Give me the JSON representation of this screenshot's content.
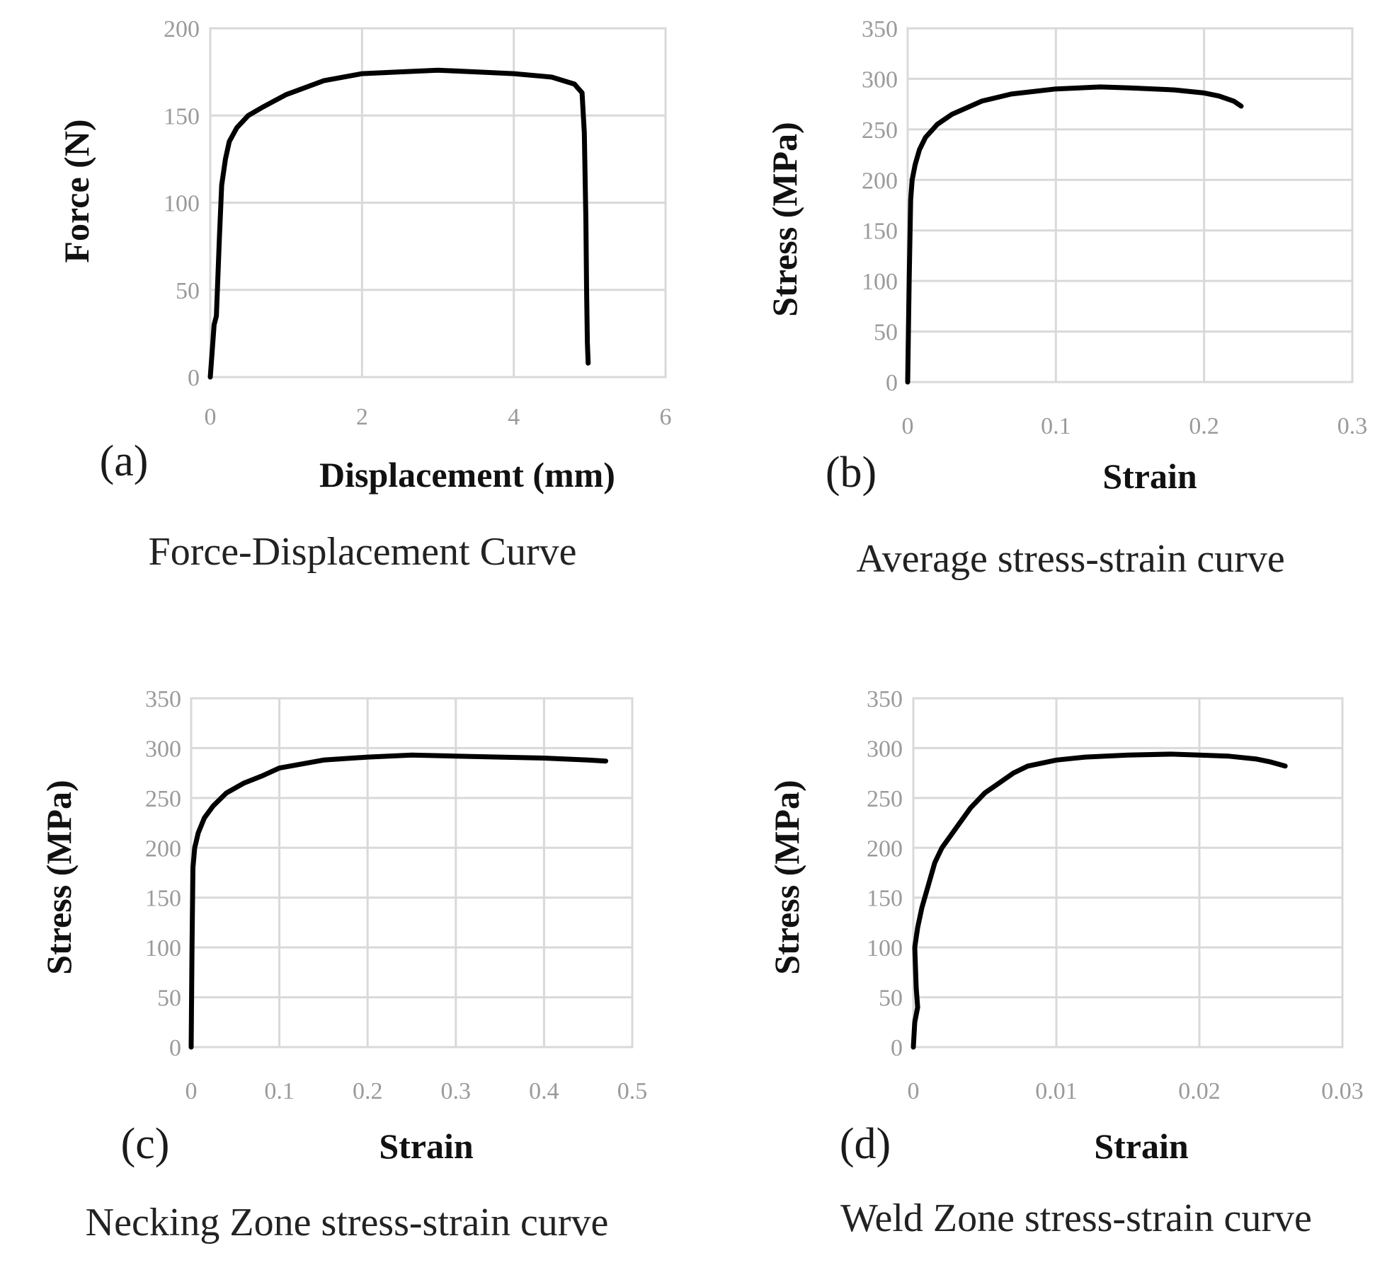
{
  "chart_data": [
    {
      "type": "line",
      "panel": "(a)",
      "caption": "Force-Displacement Curve",
      "xlabel": "Displacement (mm)",
      "ylabel": "Force (N)",
      "xlim": [
        0,
        6
      ],
      "ylim": [
        0,
        200
      ],
      "xticks": [
        0,
        2,
        4,
        6
      ],
      "xtick_labels": [
        "0",
        "2",
        "4",
        "6"
      ],
      "yticks": [
        0,
        50,
        100,
        150,
        200
      ],
      "ytick_labels": [
        "0",
        "50",
        "100",
        "150",
        "200"
      ],
      "grid": true,
      "series": [
        {
          "name": "Force-Displacement",
          "x": [
            0,
            0.05,
            0.08,
            0.12,
            0.15,
            0.2,
            0.25,
            0.35,
            0.5,
            0.7,
            1.0,
            1.5,
            2.0,
            2.5,
            3.0,
            3.5,
            4.0,
            4.5,
            4.8,
            4.9,
            4.93,
            4.95,
            4.96,
            4.97,
            4.98
          ],
          "y": [
            0,
            30,
            35,
            80,
            110,
            125,
            135,
            143,
            150,
            155,
            162,
            170,
            174,
            175,
            176,
            175,
            174,
            172,
            168,
            163,
            140,
            90,
            50,
            20,
            8
          ]
        }
      ]
    },
    {
      "type": "line",
      "panel": "(b)",
      "caption": "Average stress-strain curve",
      "xlabel": "Strain",
      "ylabel": "Stress (MPa)",
      "xlim": [
        0,
        0.3
      ],
      "ylim": [
        0,
        350
      ],
      "xticks": [
        0,
        0.1,
        0.2,
        0.3
      ],
      "xtick_labels": [
        "0",
        "0.1",
        "0.2",
        "0.3"
      ],
      "yticks": [
        0,
        50,
        100,
        150,
        200,
        250,
        300,
        350
      ],
      "ytick_labels": [
        "0",
        "50",
        "100",
        "150",
        "200",
        "250",
        "300",
        "350"
      ],
      "grid": true,
      "series": [
        {
          "name": "Average",
          "x": [
            0,
            0.001,
            0.002,
            0.003,
            0.005,
            0.008,
            0.012,
            0.02,
            0.03,
            0.05,
            0.07,
            0.1,
            0.13,
            0.15,
            0.18,
            0.2,
            0.21,
            0.22,
            0.225
          ],
          "y": [
            0,
            100,
            180,
            200,
            215,
            230,
            242,
            255,
            265,
            278,
            285,
            290,
            292,
            291,
            289,
            286,
            283,
            278,
            273
          ]
        }
      ]
    },
    {
      "type": "line",
      "panel": "(c)",
      "caption": "Necking Zone stress-strain curve",
      "xlabel": "Strain",
      "ylabel": "Stress (MPa)",
      "xlim": [
        0,
        0.5
      ],
      "ylim": [
        0,
        350
      ],
      "xticks": [
        0,
        0.1,
        0.2,
        0.3,
        0.4,
        0.5
      ],
      "xtick_labels": [
        "0",
        "0.1",
        "0.2",
        "0.3",
        "0.4",
        "0.5"
      ],
      "yticks": [
        0,
        50,
        100,
        150,
        200,
        250,
        300,
        350
      ],
      "ytick_labels": [
        "0",
        "50",
        "100",
        "150",
        "200",
        "250",
        "300",
        "350"
      ],
      "grid": true,
      "series": [
        {
          "name": "Necking Zone",
          "x": [
            0,
            0.001,
            0.002,
            0.004,
            0.008,
            0.015,
            0.025,
            0.04,
            0.06,
            0.08,
            0.1,
            0.15,
            0.2,
            0.25,
            0.3,
            0.35,
            0.4,
            0.45,
            0.47
          ],
          "y": [
            0,
            100,
            180,
            200,
            215,
            230,
            242,
            255,
            265,
            272,
            280,
            288,
            291,
            293,
            292,
            291,
            290,
            288,
            287
          ]
        }
      ]
    },
    {
      "type": "line",
      "panel": "(d)",
      "caption": "Weld Zone stress-strain curve",
      "xlabel": "Strain",
      "ylabel": "Stress (MPa)",
      "xlim": [
        0,
        0.03
      ],
      "ylim": [
        0,
        350
      ],
      "xticks": [
        0,
        0.01,
        0.02,
        0.03
      ],
      "xtick_labels": [
        "0",
        "0.01",
        "0.02",
        "0.03"
      ],
      "yticks": [
        0,
        50,
        100,
        150,
        200,
        250,
        300,
        350
      ],
      "ytick_labels": [
        "0",
        "50",
        "100",
        "150",
        "200",
        "250",
        "300",
        "350"
      ],
      "grid": true,
      "series": [
        {
          "name": "Weld Zone",
          "x": [
            0,
            0.0001,
            0.0003,
            0.0002,
            0.0001,
            0.0003,
            0.0006,
            0.001,
            0.0015,
            0.002,
            0.003,
            0.004,
            0.005,
            0.006,
            0.007,
            0.008,
            0.01,
            0.012,
            0.015,
            0.018,
            0.02,
            0.022,
            0.024,
            0.025,
            0.026
          ],
          "y": [
            0,
            25,
            40,
            60,
            100,
            120,
            140,
            160,
            185,
            200,
            220,
            240,
            255,
            265,
            275,
            282,
            288,
            291,
            293,
            294,
            293,
            292,
            289,
            286,
            282
          ]
        }
      ]
    }
  ]
}
